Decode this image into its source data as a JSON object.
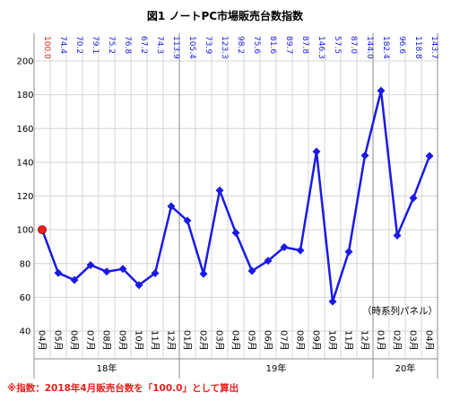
{
  "chart_data": {
    "type": "line",
    "title": "図1 ノートPC市場販売台数指数",
    "categories": [
      "04月",
      "05月",
      "06月",
      "07月",
      "08月",
      "09月",
      "10月",
      "11月",
      "12月",
      "01月",
      "02月",
      "03月",
      "04月",
      "05月",
      "06月",
      "07月",
      "08月",
      "09月",
      "10月",
      "11月",
      "12月",
      "01月",
      "02月",
      "03月",
      "04月"
    ],
    "years": [
      {
        "label": "18年",
        "start": 0,
        "end": 8
      },
      {
        "label": "19年",
        "start": 9,
        "end": 20
      },
      {
        "label": "20年",
        "start": 21,
        "end": 24
      }
    ],
    "values": [
      100.0,
      74.4,
      70.2,
      79.1,
      75.2,
      76.8,
      67.2,
      74.3,
      113.9,
      105.4,
      73.9,
      123.3,
      98.2,
      75.6,
      81.6,
      89.7,
      87.8,
      146.3,
      57.5,
      87.0,
      144.0,
      182.4,
      96.6,
      118.8,
      143.7
    ],
    "value_labels": [
      "100.0",
      "74.4",
      "70.2",
      "79.1",
      "75.2",
      "76.8",
      "67.2",
      "74.3",
      "113.9",
      "105.4",
      "73.9",
      "123.3",
      "98.2",
      "75.6",
      "81.6",
      "89.7",
      "87.8",
      "146.3",
      "57.5",
      "87.0",
      "144.0",
      "182.4",
      "96.6",
      "118.8",
      "143.7"
    ],
    "yticks": [
      "200",
      "180",
      "160",
      "140",
      "120",
      "100",
      "80",
      "60",
      "40"
    ],
    "ylim": [
      40,
      200
    ],
    "grid": true,
    "colors": {
      "line": "#1a1ae6",
      "base_point": "#e8201c",
      "grid": "#d4d4d4",
      "label_blue": "#1a1ae6",
      "label_red": "#e8201c"
    },
    "footnote": "※指数：2018年4月販売台数を「100.0」として算出",
    "panel_note": "（時系列パネル）"
  }
}
